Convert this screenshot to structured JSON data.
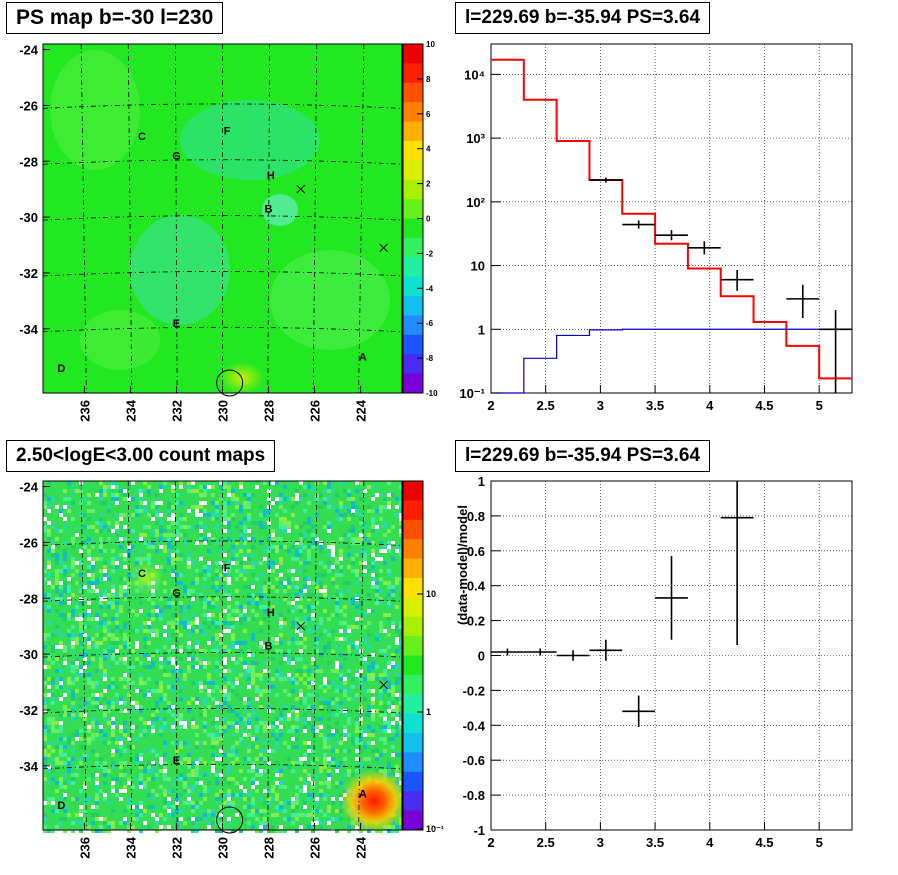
{
  "titles": {
    "ps_map": "PS map b=-30 l=230",
    "count_map": "2.50<logE<3.00 count maps",
    "spectrum": "l=229.69 b=-35.94 PS=3.64",
    "residual": "l=229.69 b=-35.94 PS=3.64"
  },
  "chart_data": [
    {
      "type": "heatmap",
      "title": "PS map b=-30 l=230",
      "x_ticks": [
        "236",
        "234",
        "232",
        "230",
        "228",
        "226",
        "224"
      ],
      "y_ticks": [
        "-24",
        "-26",
        "-28",
        "-30",
        "-32",
        "-34"
      ],
      "colorbar_ticks": [
        "10",
        "8",
        "6",
        "4",
        "2",
        "0",
        "-2",
        "-4",
        "-6",
        "-8",
        "-10"
      ],
      "zlim": [
        -10,
        10
      ],
      "sources": [
        {
          "label": "A",
          "l": 223.9,
          "b": -35.0
        },
        {
          "label": "B",
          "l": 228.0,
          "b": -29.7
        },
        {
          "label": "C",
          "l": 233.5,
          "b": -27.1
        },
        {
          "label": "D",
          "l": 237.0,
          "b": -35.4
        },
        {
          "label": "E",
          "l": 232.0,
          "b": -33.8
        },
        {
          "label": "F",
          "l": 229.8,
          "b": -26.9
        },
        {
          "label": "G",
          "l": 232.0,
          "b": -27.8
        },
        {
          "label": "H",
          "l": 227.9,
          "b": -28.5
        }
      ],
      "markers": [
        {
          "symbol": "x",
          "l": 226.6,
          "b": -29.0
        },
        {
          "symbol": "x",
          "l": 223.0,
          "b": -31.1
        },
        {
          "symbol": "circle",
          "l": 229.69,
          "b": -35.94
        }
      ]
    },
    {
      "type": "heatmap",
      "title": "2.50<logE<3.00 count maps",
      "x_ticks": [
        "236",
        "234",
        "232",
        "230",
        "228",
        "226",
        "224"
      ],
      "y_ticks": [
        "-24",
        "-26",
        "-28",
        "-30",
        "-32",
        "-34"
      ],
      "colorbar_ticks": [
        "10",
        "1",
        "10⁻¹"
      ],
      "colorbar_scale": "log"
    },
    {
      "type": "line",
      "title": "l=229.69 b=-35.94 PS=3.64",
      "xlim": [
        2.0,
        5.3
      ],
      "ylim": [
        0.1,
        30000
      ],
      "yscale": "log",
      "grid": true,
      "x_ticks": [
        "2",
        "2.5",
        "3",
        "3.5",
        "4",
        "4.5",
        "5"
      ],
      "y_ticks": [
        "10⁻¹",
        "1",
        "10",
        "10²",
        "10³",
        "10⁴"
      ],
      "series": [
        {
          "color": "#ff0000",
          "style": "step",
          "edges": [
            2.0,
            2.3,
            2.6,
            2.9,
            3.2,
            3.5,
            3.8,
            4.1,
            4.4,
            4.7,
            5.0,
            5.3
          ],
          "values": [
            17000,
            4000,
            900,
            220,
            65,
            22,
            9,
            3.3,
            1.3,
            0.55,
            0.17
          ]
        },
        {
          "color": "#0000cc",
          "style": "step",
          "edges": [
            2.0,
            2.3,
            2.6,
            2.9,
            3.2,
            3.5,
            3.8,
            4.1,
            4.4,
            4.7,
            5.0,
            5.3
          ],
          "values": [
            0.03,
            0.35,
            0.8,
            0.98,
            1.0,
            1.0,
            1.0,
            1.0,
            1.0,
            1.0,
            1.0
          ]
        },
        {
          "color": "#000000",
          "style": "errorbar",
          "points": [
            {
              "x": 3.05,
              "y": 220,
              "xerr": 0.15,
              "ylo": 200,
              "yhi": 240
            },
            {
              "x": 3.35,
              "y": 44,
              "xerr": 0.15,
              "ylo": 38,
              "yhi": 51
            },
            {
              "x": 3.65,
              "y": 30,
              "xerr": 0.15,
              "ylo": 25,
              "yhi": 36
            },
            {
              "x": 3.95,
              "y": 19,
              "xerr": 0.15,
              "ylo": 15,
              "yhi": 24
            },
            {
              "x": 4.25,
              "y": 6,
              "xerr": 0.15,
              "ylo": 4,
              "yhi": 8.5
            },
            {
              "x": 4.85,
              "y": 3,
              "xerr": 0.15,
              "ylo": 1.5,
              "yhi": 5
            },
            {
              "x": 5.15,
              "y": 1,
              "xerr": 0.15,
              "ylo": 0.1,
              "yhi": 2
            }
          ]
        }
      ]
    },
    {
      "type": "scatter",
      "title": "l=229.69 b=-35.94 PS=3.64",
      "ylabel": "(data-model)/model",
      "xlim": [
        2.0,
        5.3
      ],
      "ylim": [
        -1,
        1
      ],
      "grid": true,
      "x_ticks": [
        "2",
        "2.5",
        "3",
        "3.5",
        "4",
        "4.5",
        "5"
      ],
      "y_ticks": [
        "1",
        "0.8",
        "0.6",
        "0.4",
        "0.2",
        "0",
        "-0.2",
        "-0.4",
        "-0.6",
        "-0.8",
        "-1"
      ],
      "series": [
        {
          "color": "#000000",
          "style": "errorbar",
          "points": [
            {
              "x": 2.15,
              "y": 0.02,
              "xerr": 0.15,
              "ylo": 0.0,
              "yhi": 0.04
            },
            {
              "x": 2.45,
              "y": 0.02,
              "xerr": 0.15,
              "ylo": 0.0,
              "yhi": 0.04
            },
            {
              "x": 2.75,
              "y": 0.0,
              "xerr": 0.15,
              "ylo": -0.03,
              "yhi": 0.03
            },
            {
              "x": 3.05,
              "y": 0.03,
              "xerr": 0.15,
              "ylo": -0.03,
              "yhi": 0.09
            },
            {
              "x": 3.35,
              "y": -0.32,
              "xerr": 0.15,
              "ylo": -0.41,
              "yhi": -0.23
            },
            {
              "x": 3.65,
              "y": 0.33,
              "xerr": 0.15,
              "ylo": 0.09,
              "yhi": 0.57
            },
            {
              "x": 4.25,
              "y": 0.79,
              "xerr": 0.15,
              "ylo": 0.06,
              "yhi": 1.0
            }
          ]
        }
      ]
    }
  ]
}
